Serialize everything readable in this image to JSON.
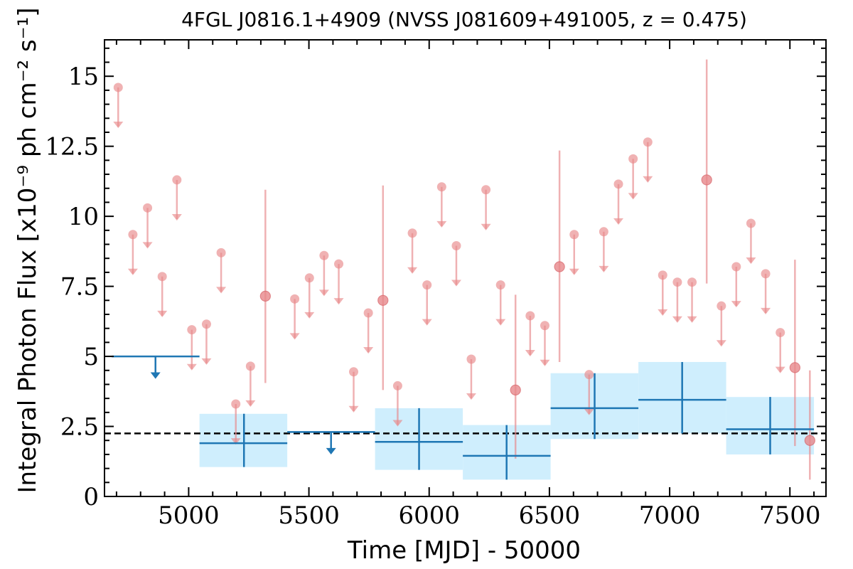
{
  "chart_data": {
    "type": "scatter",
    "title": "4FGL J0816.1+4909 (NVSS J081609+491005, z = 0.475)",
    "xlabel": "Time [MJD] - 50000",
    "ylabel": "Integral Photon Flux [x10⁻⁹ ph cm⁻² s⁻¹]",
    "xlim": [
      4650,
      7650
    ],
    "ylim": [
      0,
      16.3
    ],
    "xticks": [
      5000,
      5500,
      6000,
      6500,
      7000,
      7500
    ],
    "xtick_labels": [
      "5000",
      "5500",
      "6000",
      "6500",
      "7000",
      "7500"
    ],
    "yticks": [
      0,
      2.5,
      5,
      7.5,
      10,
      12.5,
      15
    ],
    "ytick_labels": [
      "0",
      "2.5",
      "5",
      "7.5",
      "10",
      "12.5",
      "15"
    ],
    "grid": false,
    "reference_line": {
      "y": 2.25,
      "style": "dashed",
      "color": "#000000"
    },
    "series": [
      {
        "kind": "short-bin upper limits",
        "color": "#e8888b",
        "points": [
          [
            4707,
            14.6
          ],
          [
            4768,
            9.35
          ],
          [
            4829,
            10.3
          ],
          [
            4890,
            7.85
          ],
          [
            4951,
            11.3
          ],
          [
            5013,
            5.95
          ],
          [
            5074,
            6.15
          ],
          [
            5135,
            8.7
          ],
          [
            5196,
            3.3
          ],
          [
            5257,
            4.65
          ],
          [
            5441,
            7.05
          ],
          [
            5502,
            7.8
          ],
          [
            5563,
            8.6
          ],
          [
            5624,
            8.3
          ],
          [
            5686,
            4.45
          ],
          [
            5747,
            6.55
          ],
          [
            5869,
            3.95
          ],
          [
            5930,
            9.4
          ],
          [
            5991,
            7.55
          ],
          [
            6052,
            11.05
          ],
          [
            6113,
            8.95
          ],
          [
            6175,
            4.9
          ],
          [
            6236,
            10.95
          ],
          [
            6297,
            7.55
          ],
          [
            6420,
            6.45
          ],
          [
            6481,
            6.1
          ],
          [
            6603,
            9.35
          ],
          [
            6665,
            4.35
          ],
          [
            6726,
            9.45
          ],
          [
            6787,
            11.15
          ],
          [
            6848,
            12.05
          ],
          [
            6909,
            12.65
          ],
          [
            6971,
            7.9
          ],
          [
            7032,
            7.65
          ],
          [
            7093,
            7.65
          ],
          [
            7215,
            6.8
          ],
          [
            7277,
            8.2
          ],
          [
            7338,
            9.75
          ],
          [
            7399,
            7.95
          ],
          [
            7460,
            5.85
          ]
        ]
      },
      {
        "kind": "short-bin detections",
        "color": "#e8888b",
        "points": [
          {
            "x": 5319,
            "y": 7.15,
            "ylo": 4.05,
            "yhi": 10.95
          },
          {
            "x": 5808,
            "y": 7.0,
            "ylo": 3.8,
            "yhi": 11.1
          },
          {
            "x": 6359,
            "y": 3.8,
            "ylo": 1.35,
            "yhi": 7.2
          },
          {
            "x": 6542,
            "y": 8.2,
            "ylo": 4.8,
            "yhi": 12.35
          },
          {
            "x": 7154,
            "y": 11.3,
            "ylo": 7.6,
            "yhi": 15.6
          },
          {
            "x": 7521,
            "y": 4.6,
            "ylo": 1.8,
            "yhi": 8.45
          },
          {
            "x": 7583,
            "y": 2.0,
            "ylo": 0.6,
            "yhi": 4.5
          }
        ]
      },
      {
        "kind": "long-bin detections",
        "color": "#1f77b4",
        "band_color": "#cfeefd",
        "bins": [
          {
            "x0": 5045,
            "x1": 5410,
            "x": 5230,
            "y": 1.9,
            "ylo": 1.05,
            "yhi": 2.95
          },
          {
            "x0": 5775,
            "x1": 6140,
            "x": 5958,
            "y": 1.95,
            "ylo": 0.95,
            "yhi": 3.15
          },
          {
            "x0": 6140,
            "x1": 6505,
            "x": 6322,
            "y": 1.45,
            "ylo": 0.6,
            "yhi": 2.55
          },
          {
            "x0": 6505,
            "x1": 6870,
            "x": 6688,
            "y": 3.15,
            "ylo": 2.05,
            "yhi": 4.4
          },
          {
            "x0": 6870,
            "x1": 7235,
            "x": 7052,
            "y": 3.45,
            "ylo": 2.25,
            "yhi": 4.8
          },
          {
            "x0": 7235,
            "x1": 7600,
            "x": 7418,
            "y": 2.4,
            "ylo": 1.5,
            "yhi": 3.55
          }
        ]
      },
      {
        "kind": "long-bin upper limits",
        "color": "#1f77b4",
        "bins": [
          {
            "x0": 4680,
            "x1": 5045,
            "x": 4862,
            "y": 5.0
          },
          {
            "x0": 5410,
            "x1": 5775,
            "x": 5592,
            "y": 2.3
          }
        ]
      }
    ]
  }
}
